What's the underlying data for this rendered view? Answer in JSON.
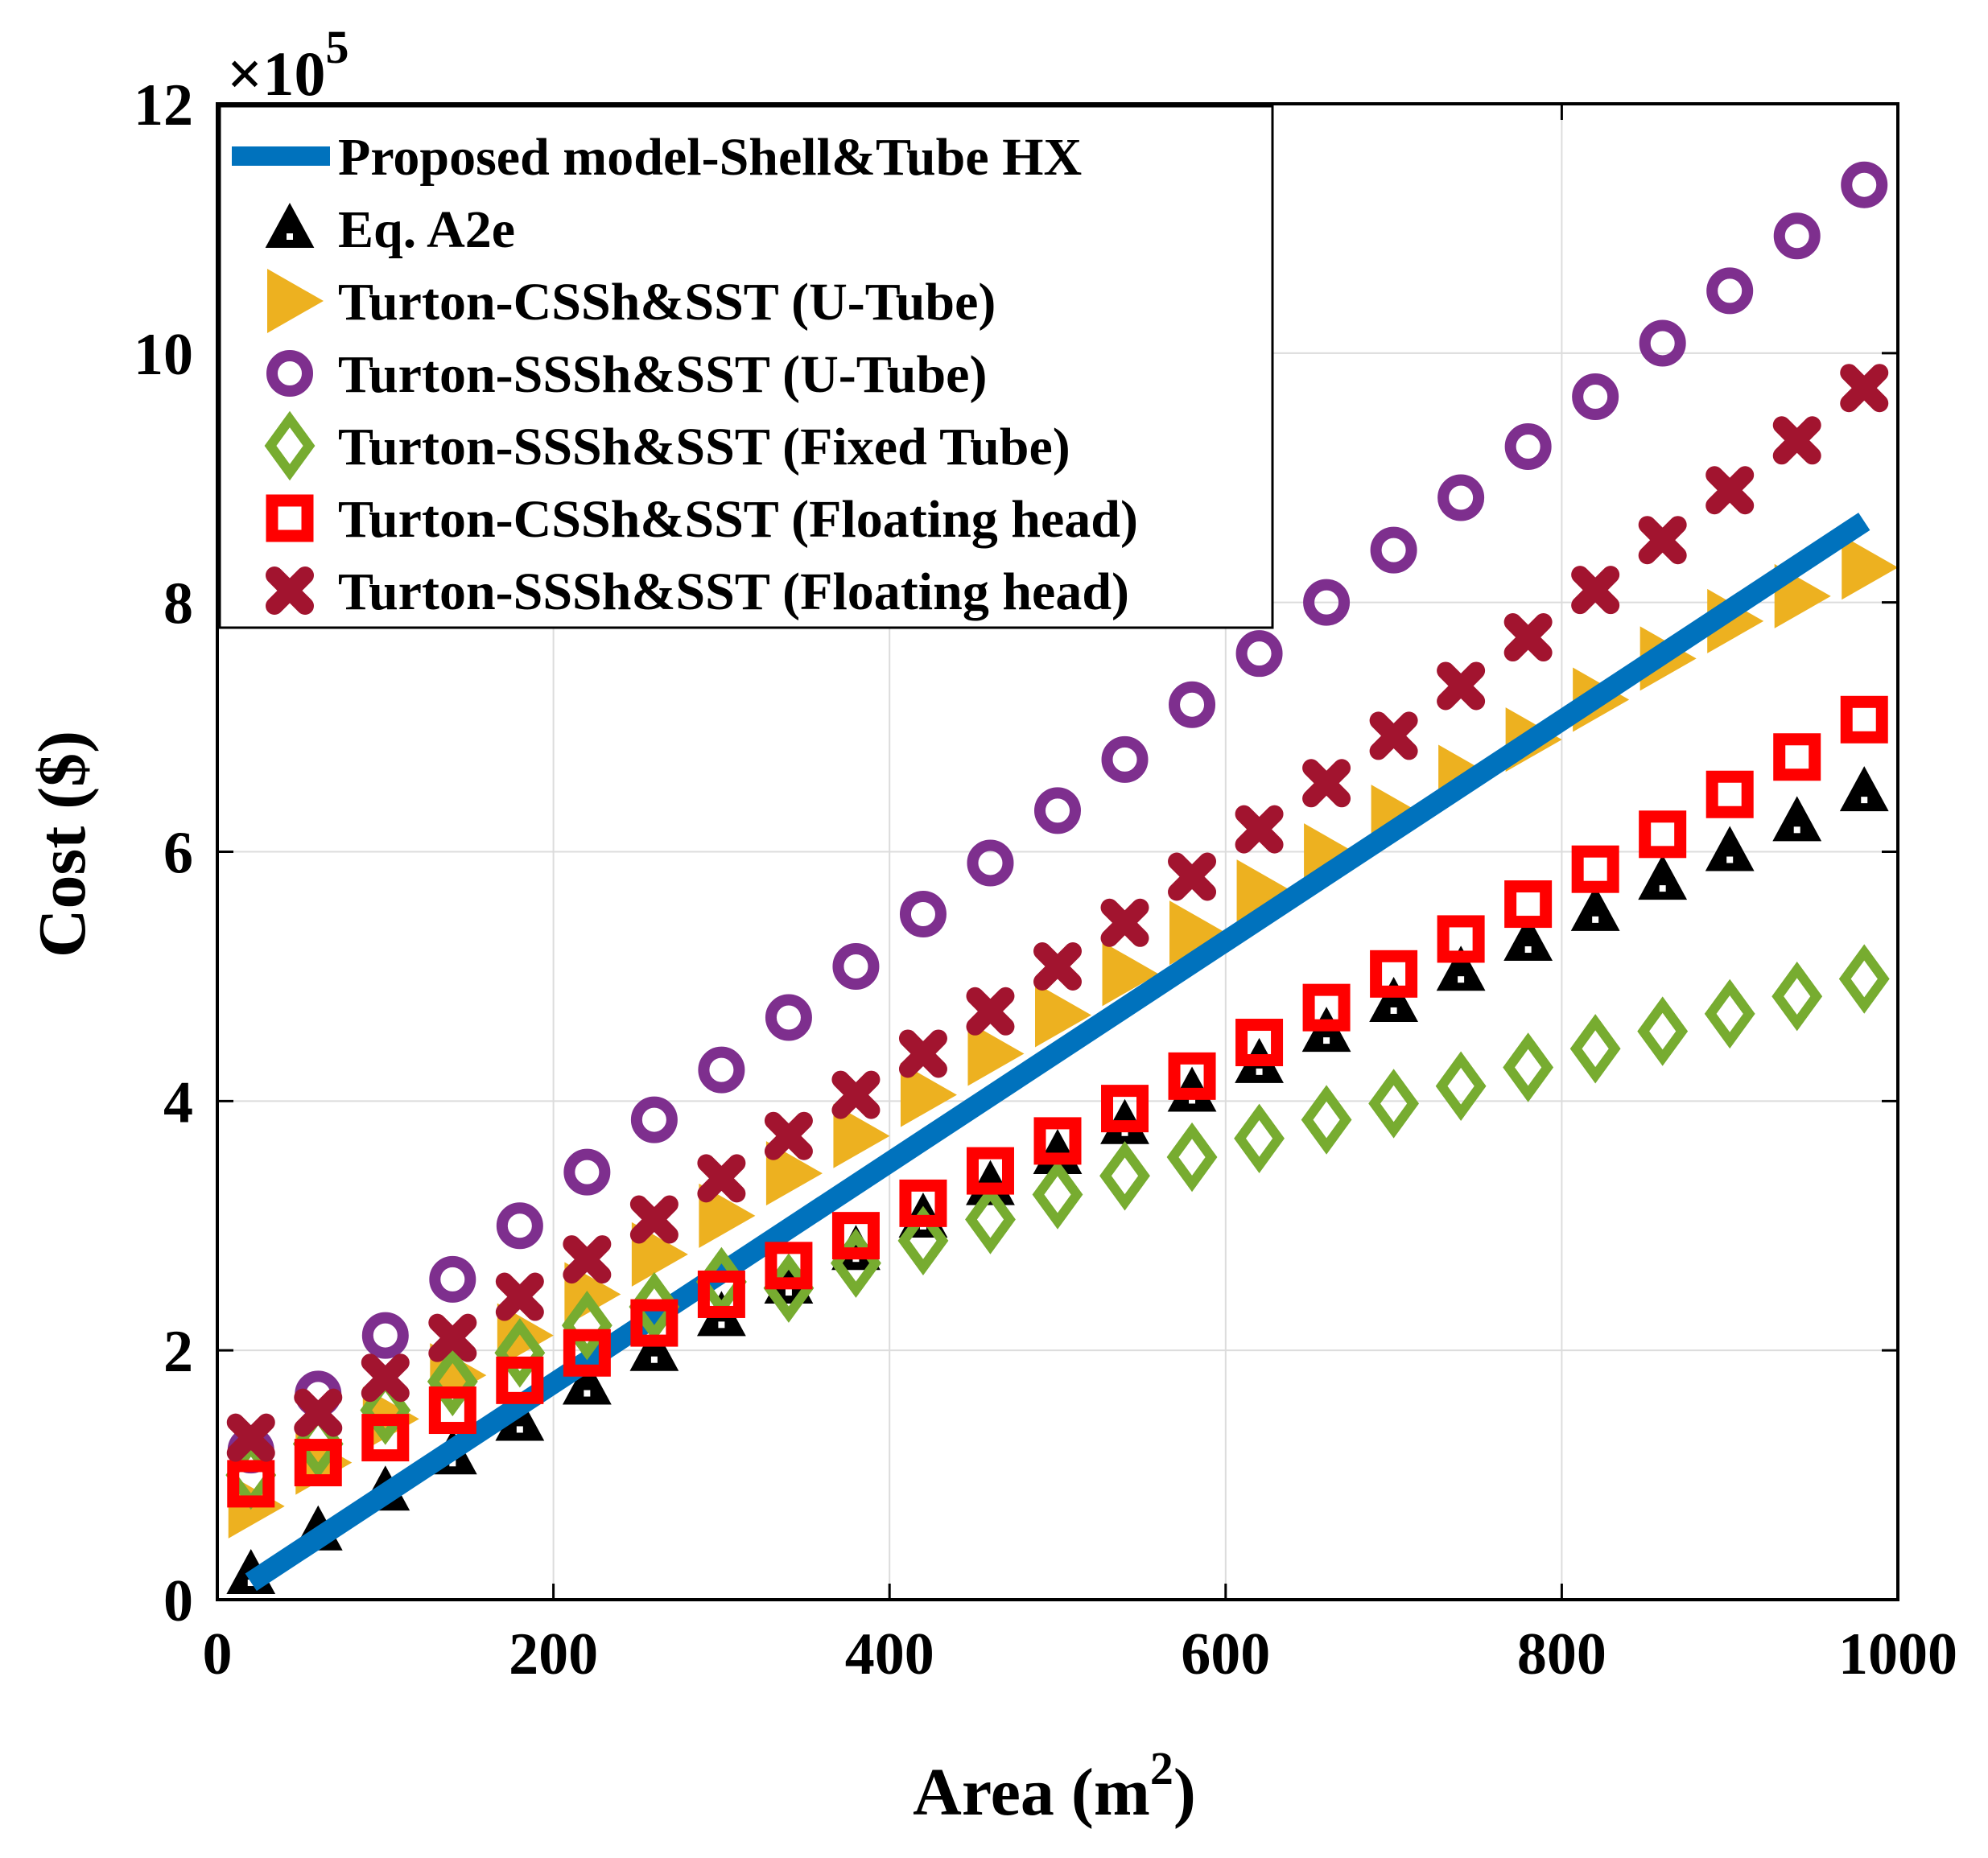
{
  "chart_data": {
    "type": "scatter",
    "title": "",
    "xlabel": "Area (m",
    "xlabel_sup": "2",
    "xlabel_close": ")",
    "ylabel": "Cost ($)",
    "y_multiplier": {
      "base": "×10",
      "exp": "5"
    },
    "xlim": [
      0,
      1000
    ],
    "ylim": [
      0,
      12
    ],
    "xticks": [
      0,
      200,
      400,
      600,
      800,
      1000
    ],
    "yticks": [
      0,
      2,
      4,
      6,
      8,
      10,
      12
    ],
    "x_tick_labels": [
      "0",
      "200",
      "400",
      "600",
      "800",
      "1000"
    ],
    "y_tick_labels": [
      "0",
      "2",
      "4",
      "6",
      "8",
      "10",
      "12"
    ],
    "grid": true,
    "legend_position": "top-left",
    "x": [
      20,
      60,
      100,
      140,
      180,
      220,
      260,
      300,
      340,
      380,
      420,
      460,
      500,
      540,
      580,
      620,
      660,
      700,
      740,
      780,
      820,
      860,
      900,
      940,
      980
    ],
    "series": [
      {
        "name": "Proposed model-Shell&Tube HX",
        "kind": "line",
        "color": "#0072bd",
        "x": [
          20,
          980
        ],
        "values": [
          0.14,
          8.65
        ]
      },
      {
        "name": "Eq. A2e",
        "kind": "marker",
        "marker": "triangle-up",
        "color": "#000000",
        "values": [
          0.2,
          0.55,
          0.87,
          1.16,
          1.43,
          1.72,
          1.99,
          2.27,
          2.53,
          2.8,
          3.06,
          3.32,
          3.57,
          3.81,
          4.07,
          4.3,
          4.55,
          4.79,
          5.04,
          5.28,
          5.52,
          5.77,
          6.0,
          6.24,
          6.48
        ]
      },
      {
        "name": "Turton-CSSh&SST (U-Tube)",
        "kind": "marker",
        "marker": "triangle-right",
        "color": "#edb120",
        "values": [
          0.75,
          1.1,
          1.45,
          1.8,
          2.12,
          2.45,
          2.77,
          3.08,
          3.42,
          3.72,
          4.05,
          4.38,
          4.69,
          5.02,
          5.35,
          5.68,
          5.97,
          6.28,
          6.6,
          6.9,
          7.22,
          7.55,
          7.85,
          8.05,
          8.28
        ]
      },
      {
        "name": "Turton-SSSh&SST (U-Tube)",
        "kind": "marker",
        "marker": "circle",
        "color": "#7e2f8e",
        "values": [
          1.2,
          1.65,
          2.12,
          2.57,
          3.0,
          3.43,
          3.85,
          4.25,
          4.67,
          5.08,
          5.5,
          5.91,
          6.33,
          6.74,
          7.18,
          7.59,
          8.0,
          8.42,
          8.84,
          9.25,
          9.65,
          10.08,
          10.5,
          10.94,
          11.35
        ]
      },
      {
        "name": "Turton-SSSh&SST (Fixed Tube)",
        "kind": "marker",
        "marker": "diamond",
        "color": "#77ac30",
        "values": [
          1.0,
          1.25,
          1.52,
          1.75,
          1.98,
          2.2,
          2.35,
          2.55,
          2.5,
          2.7,
          2.88,
          3.05,
          3.25,
          3.4,
          3.55,
          3.7,
          3.85,
          3.98,
          4.12,
          4.27,
          4.42,
          4.56,
          4.7,
          4.84,
          4.98
        ]
      },
      {
        "name": "Turton-CSSh&SST (Floating head)",
        "kind": "marker",
        "marker": "square",
        "color": "#ff0000",
        "values": [
          0.93,
          1.1,
          1.3,
          1.52,
          1.76,
          1.98,
          2.22,
          2.45,
          2.68,
          2.92,
          3.18,
          3.44,
          3.68,
          3.94,
          4.2,
          4.47,
          4.75,
          5.02,
          5.3,
          5.58,
          5.86,
          6.14,
          6.46,
          6.76,
          7.06
        ]
      },
      {
        "name": "Turton-SSSh&SST (Floating head)",
        "kind": "marker",
        "marker": "x",
        "color": "#a2142f",
        "values": [
          1.3,
          1.5,
          1.78,
          2.1,
          2.43,
          2.73,
          3.05,
          3.38,
          3.72,
          4.05,
          4.38,
          4.72,
          5.08,
          5.43,
          5.8,
          6.18,
          6.55,
          6.93,
          7.33,
          7.72,
          8.1,
          8.5,
          8.9,
          9.3,
          9.72
        ]
      }
    ]
  }
}
